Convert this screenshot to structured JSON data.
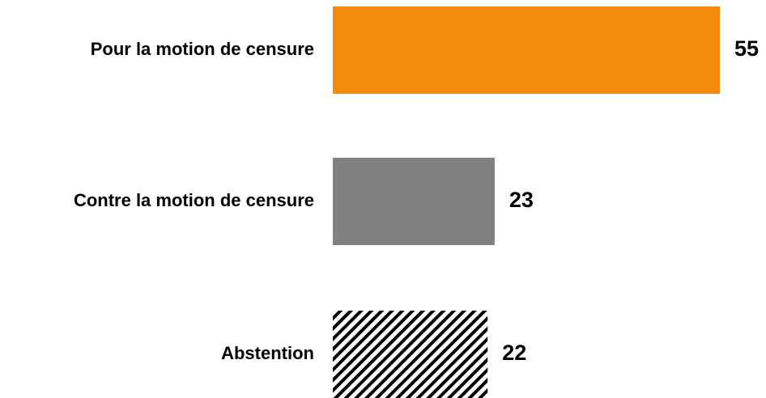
{
  "chart_data": {
    "type": "bar",
    "orientation": "horizontal",
    "categories": [
      "Pour la motion de censure",
      "Contre la motion de censure",
      "Abstention"
    ],
    "values": [
      55,
      23,
      22
    ],
    "colors": [
      "#f28a0c",
      "#808080",
      "#000000"
    ],
    "hatch": [
      false,
      false,
      true
    ],
    "xlim": [
      0,
      55
    ]
  }
}
